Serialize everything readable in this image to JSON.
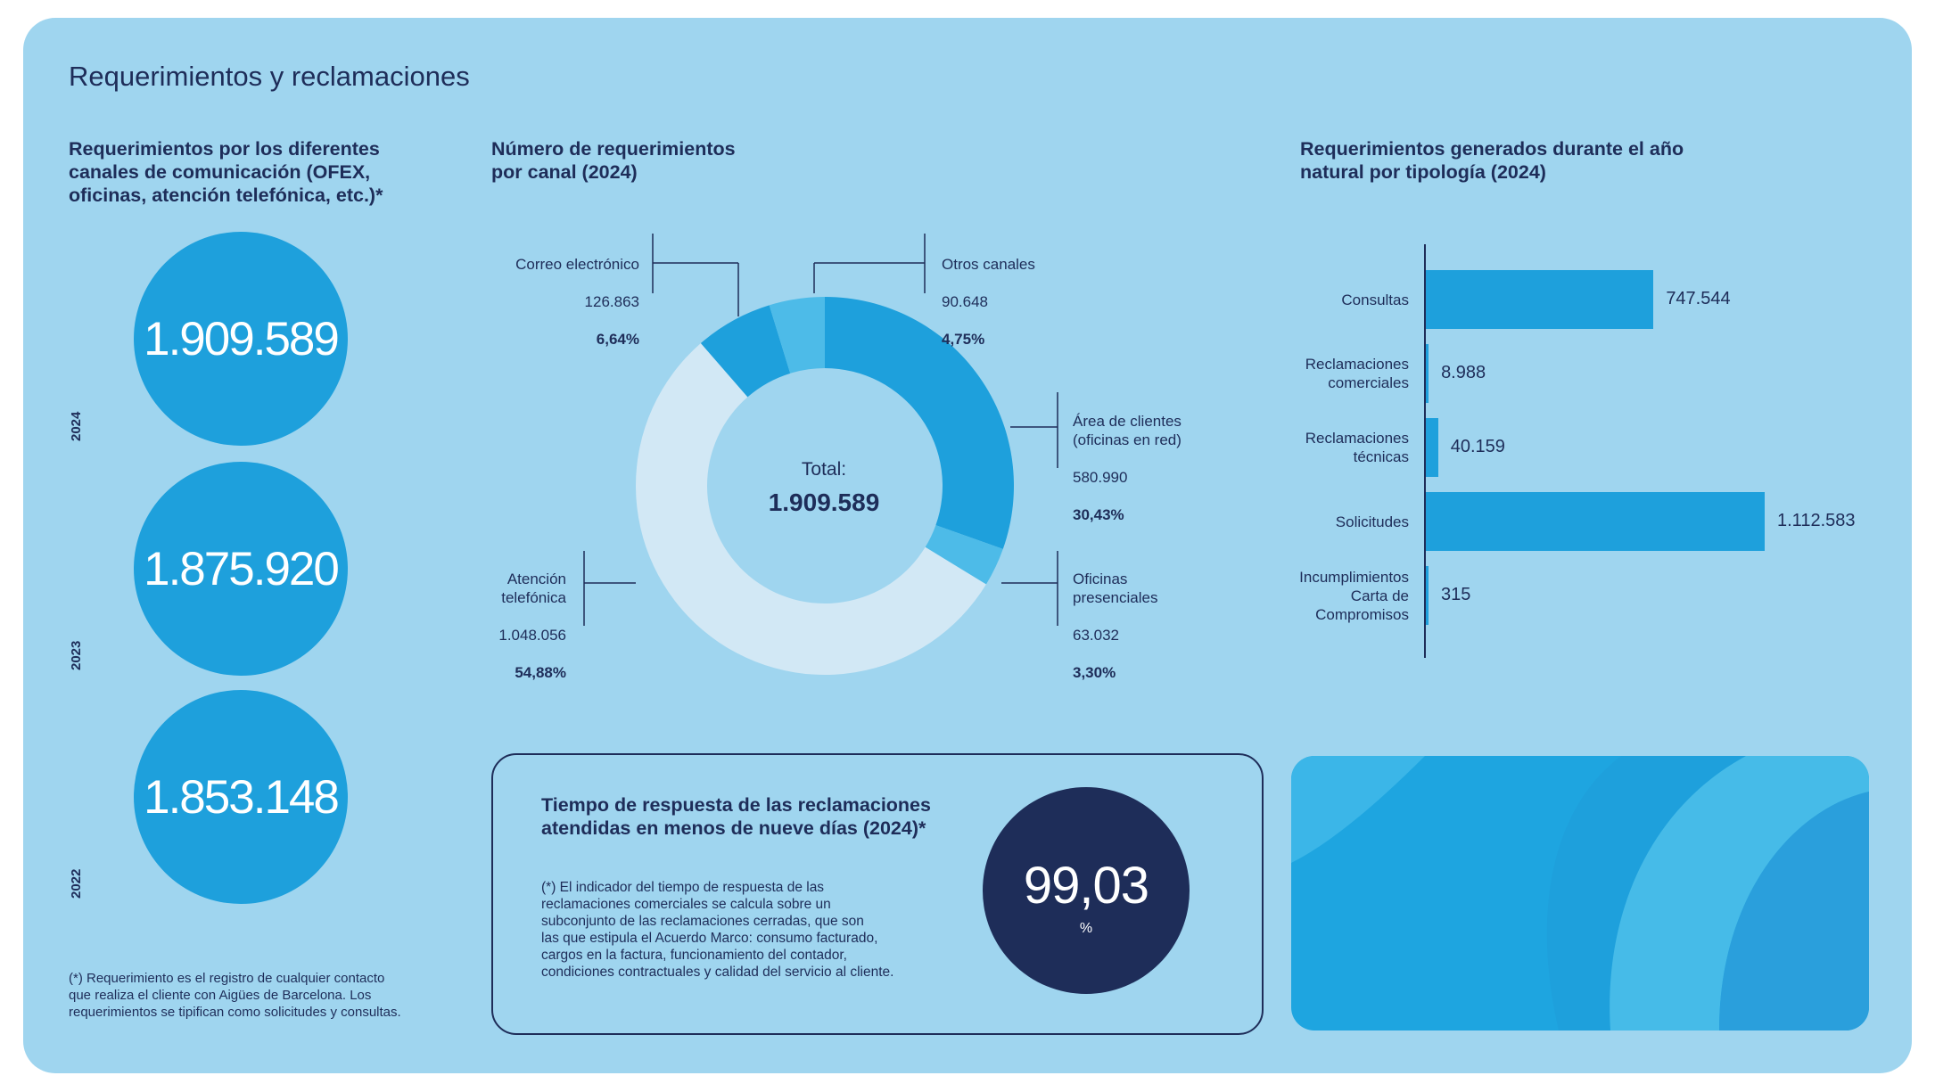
{
  "page_title": "Requerimientos y reclamaciones",
  "section1": {
    "title": "Requerimientos por los diferentes\ncanales de comunicación (OFEX,\noficinas, atención telefónica, etc.)*",
    "years": [
      {
        "year": "2024",
        "value": "1.909.589"
      },
      {
        "year": "2023",
        "value": "1.875.920"
      },
      {
        "year": "2022",
        "value": "1.853.148"
      }
    ],
    "footnote": "(*) Requerimiento es el registro de cualquier contacto\nque realiza el cliente con Aigües de Barcelona. Los\nrequerimientos se tipifican como solicitudes y consultas."
  },
  "section2": {
    "title": "Número de requerimientos\npor canal  (2024)",
    "total_label": "Total:",
    "total_value": "1.909.589",
    "labels": {
      "area": {
        "name": "Área de clientes\n(oficinas en red)",
        "value": "580.990",
        "pct": "30,43%"
      },
      "oficinas": {
        "name": "Oficinas\npresenciales",
        "value": "63.032",
        "pct": "3,30%"
      },
      "telefonica": {
        "name": "Atención\ntelefónica",
        "value": "1.048.056",
        "pct": "54,88%"
      },
      "correo": {
        "name": "Correo electrónico",
        "value": "126.863",
        "pct": "6,64%"
      },
      "otros": {
        "name": "Otros canales",
        "value": "90.648",
        "pct": "4,75%"
      }
    }
  },
  "section3": {
    "title": "Requerimientos generados durante el año\nnatural por tipología  (2024)",
    "value_labels": [
      "747.544",
      "8.988",
      "40.159",
      "1.112.583",
      "315"
    ]
  },
  "response": {
    "title": "Tiempo de respuesta de las reclamaciones\natendidas en menos de nueve días  (2024)*",
    "note": "(*) El indicador del tiempo de respuesta de las\nreclamaciones comerciales se calcula sobre un\nsubconjunto de las reclamaciones cerradas, que son\nlas que estipula el Acuerdo Marco: consumo facturado,\ncargos en la factura, funcionamiento del contador,\ncondiciones contractuales y calidad del servicio al cliente.",
    "value": "99,03",
    "unit": "%"
  },
  "colors": {
    "background": "#9fd5ef",
    "dark_blue": "#1e2d59",
    "blue": "#1ea0dc",
    "light_blue": "#4dbbe8",
    "pale": "#d2e8f5"
  },
  "chart_data": [
    {
      "type": "pie",
      "title": "Número de requerimientos por canal  (2024)",
      "categories": [
        "Área de clientes (oficinas en red)",
        "Oficinas presenciales",
        "Atención telefónica",
        "Correo electrónico",
        "Otros canales"
      ],
      "values": [
        580990,
        63032,
        1048056,
        126863,
        90648
      ],
      "percentages": [
        30.43,
        3.3,
        54.88,
        6.64,
        4.75
      ],
      "colors": [
        "#1ea0dc",
        "#4dbbe8",
        "#d2e8f5",
        "#1ea0dc",
        "#4dbbe8"
      ],
      "donut": true,
      "total": 1909589
    },
    {
      "type": "bar",
      "orientation": "horizontal",
      "title": "Requerimientos generados durante el año natural por tipología  (2024)",
      "categories": [
        "Consultas",
        "Reclamaciones\ncomerciales",
        "Reclamaciones\ntécnicas",
        "Solicitudes",
        "Incumplimientos\nCarta de\nCompromisos"
      ],
      "values": [
        747544,
        8988,
        40159,
        1112583,
        315
      ],
      "xlim": [
        0,
        1112583
      ]
    }
  ]
}
